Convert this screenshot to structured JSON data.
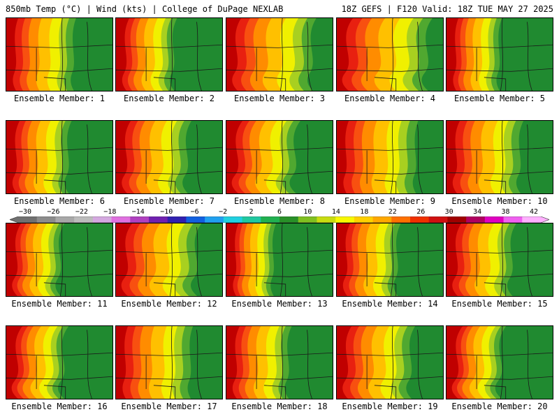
{
  "header": {
    "left": "850mb Temp (°C) | Wind (kts) | College of DuPage NEXLAB",
    "right": "18Z GEFS | F120 Valid: 18Z TUE MAY 27 2025"
  },
  "colorbar": {
    "labels": [
      "−30",
      "−26",
      "−22",
      "−18",
      "−14",
      "−10",
      "−6",
      "−2",
      "2",
      "6",
      "10",
      "14",
      "18",
      "22",
      "26",
      "30",
      "34",
      "38",
      "42"
    ],
    "colors": [
      "#707070",
      "#8c8c8c",
      "#a8a8a8",
      "#bcbcbc",
      "#d4a8e0",
      "#e070e0",
      "#b040c0",
      "#7020b0",
      "#3020b0",
      "#1060e0",
      "#20a0f0",
      "#20d0e0",
      "#20c8a0",
      "#20b050",
      "#289028",
      "#80c020",
      "#c8dc10",
      "#f8f800",
      "#ffd000",
      "#ffa800",
      "#ff7000",
      "#f03000",
      "#d01010",
      "#a00000",
      "#b00060",
      "#e000c0",
      "#f060f0",
      "#ffb0ff"
    ]
  },
  "panels": [
    {
      "label": "Ensemble Member: 1",
      "warm": 0.4
    },
    {
      "label": "Ensemble Member: 2",
      "warm": 0.33
    },
    {
      "label": "Ensemble Member: 3",
      "warm": 0.52
    },
    {
      "label": "Ensemble Member: 4",
      "warm": 0.55
    },
    {
      "label": "Ensemble Member: 5",
      "warm": 0.3
    },
    {
      "label": "Ensemble Member: 6",
      "warm": 0.36
    },
    {
      "label": "Ensemble Member: 7",
      "warm": 0.42
    },
    {
      "label": "Ensemble Member: 8",
      "warm": 0.4
    },
    {
      "label": "Ensemble Member: 9",
      "warm": 0.48
    },
    {
      "label": "Ensemble Member: 10",
      "warm": 0.44
    },
    {
      "label": "Ensemble Member: 11",
      "warm": 0.3
    },
    {
      "label": "Ensemble Member: 12",
      "warm": 0.48
    },
    {
      "label": "Ensemble Member: 13",
      "warm": 0.26
    },
    {
      "label": "Ensemble Member: 14",
      "warm": 0.35
    },
    {
      "label": "Ensemble Member: 15",
      "warm": 0.38
    },
    {
      "label": "Ensemble Member: 16",
      "warm": 0.32
    },
    {
      "label": "Ensemble Member: 17",
      "warm": 0.45
    },
    {
      "label": "Ensemble Member: 18",
      "warm": 0.36
    },
    {
      "label": "Ensemble Member: 19",
      "warm": 0.44
    },
    {
      "label": "Ensemble Member: 20",
      "warm": 0.3
    }
  ]
}
